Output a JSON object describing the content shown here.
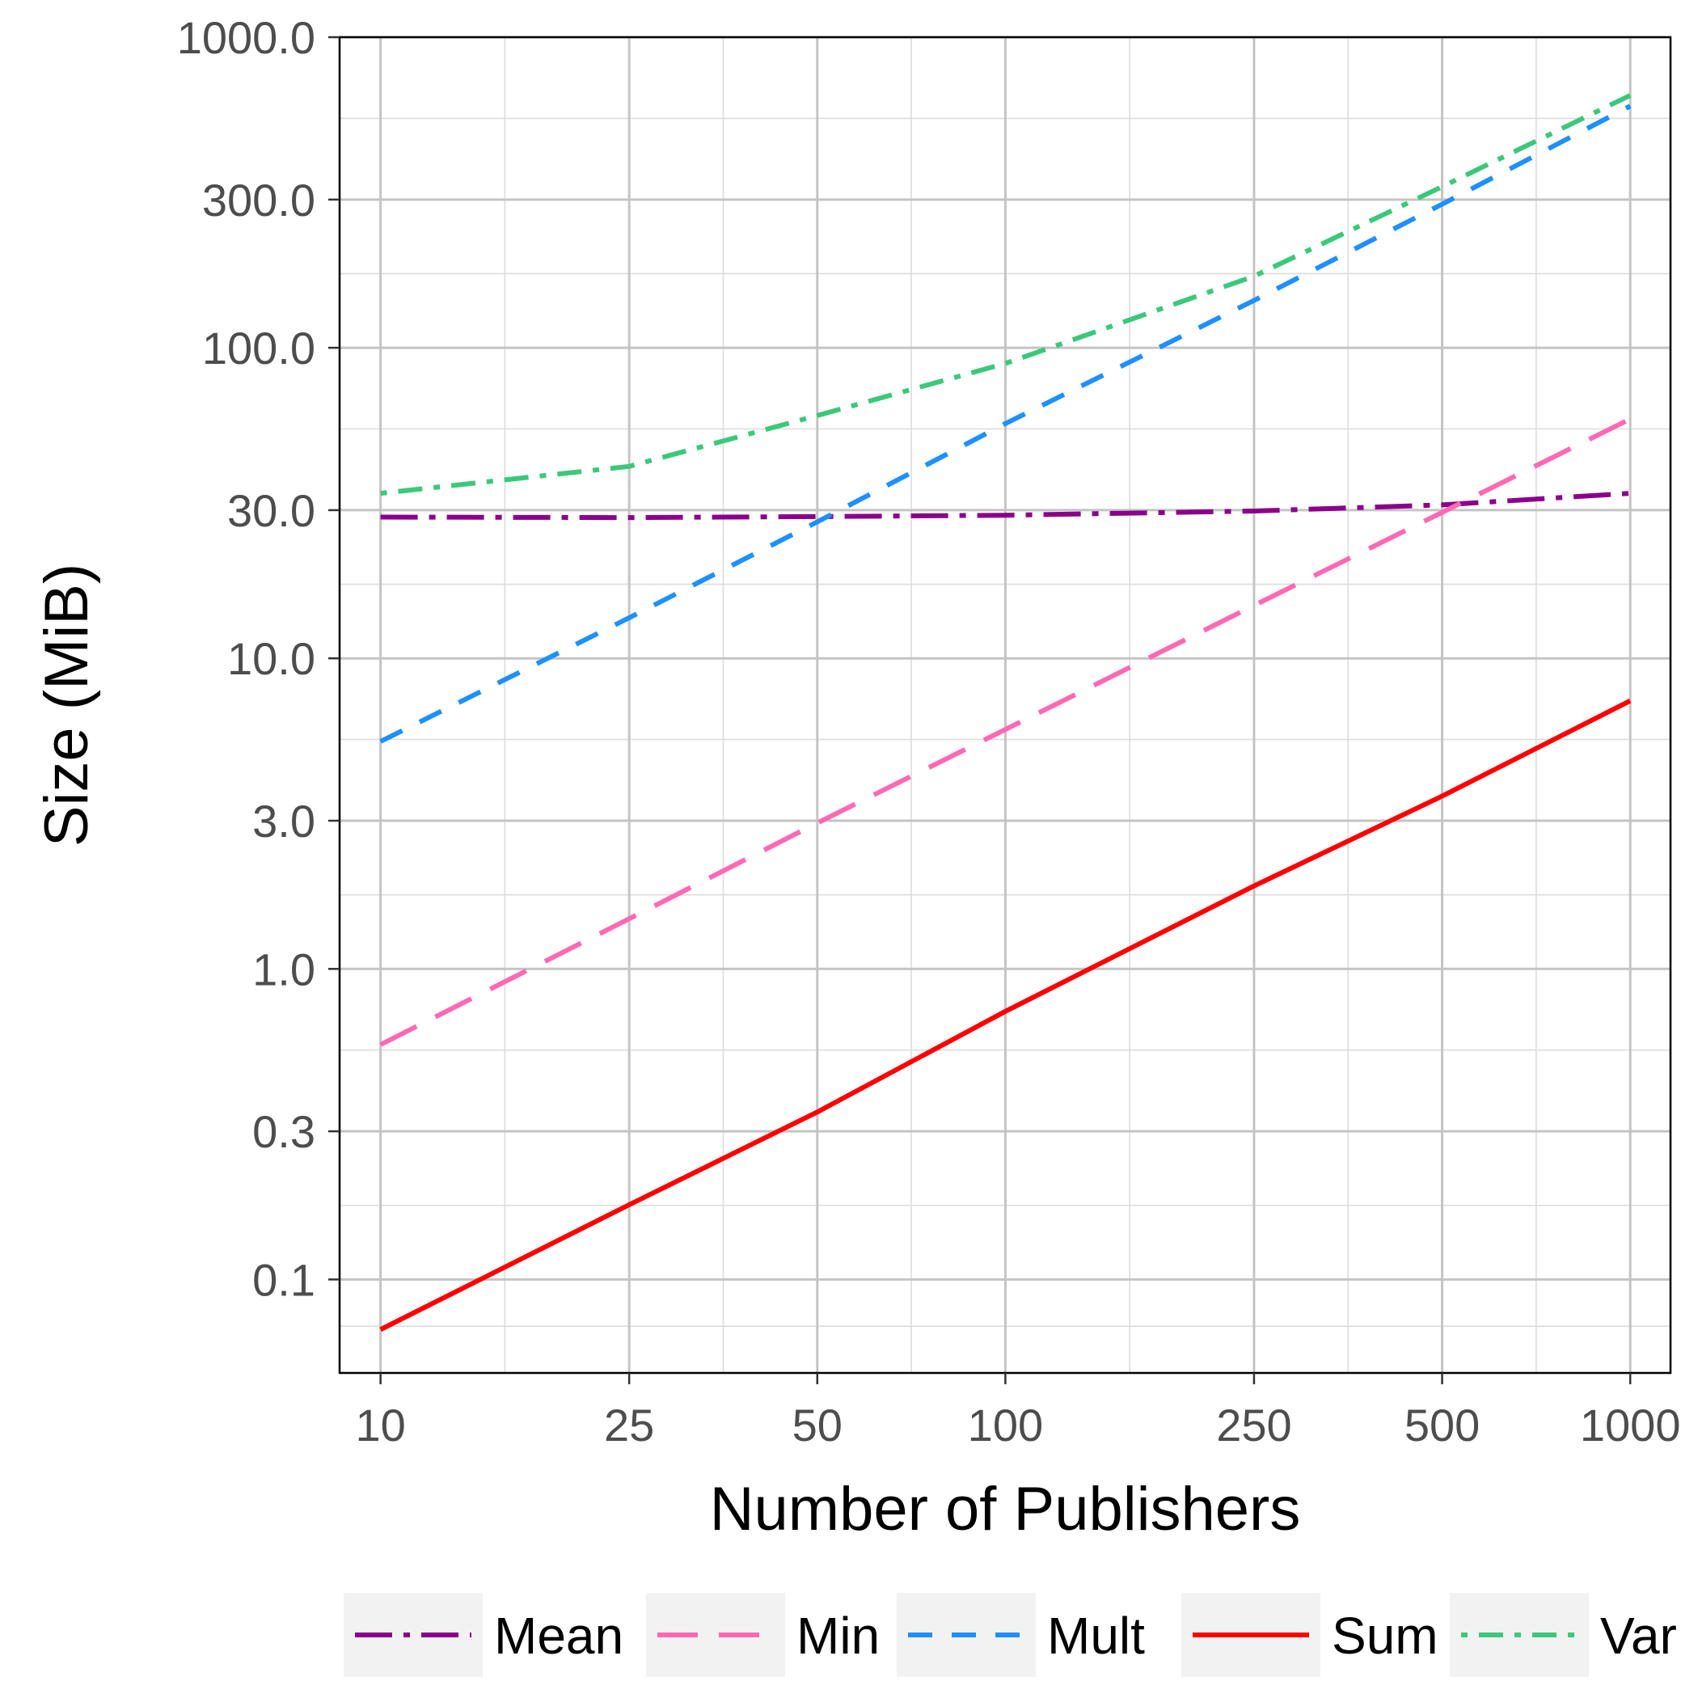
{
  "chart_data": {
    "type": "line",
    "xlabel": "Number of Publishers",
    "ylabel": "Size (MiB)",
    "x_scale": "log",
    "y_scale": "log",
    "xlim": [
      8.6,
      1160
    ],
    "ylim": [
      0.05,
      1000
    ],
    "x_ticks": [
      10,
      25,
      50,
      100,
      250,
      500,
      1000
    ],
    "x_tick_labels": [
      "10",
      "25",
      "50",
      "100",
      "250",
      "500",
      "1000"
    ],
    "y_ticks": [
      0.1,
      0.3,
      1.0,
      3.0,
      10.0,
      30.0,
      100.0,
      300.0,
      1000.0
    ],
    "y_tick_labels": [
      "0.1",
      "0.3",
      "1.0",
      "3.0",
      "10.0",
      "30.0",
      "100.0",
      "300.0",
      "1000.0"
    ],
    "grid": true,
    "legend_position": "bottom",
    "x": [
      10,
      25,
      50,
      100,
      250,
      500,
      1000
    ],
    "series": [
      {
        "name": "Mean",
        "color": "#8B008B",
        "dash": "longdash-dot",
        "values": [
          28.5,
          28.4,
          28.6,
          28.9,
          29.8,
          31.2,
          34.0
        ]
      },
      {
        "name": "Min",
        "color": "#FF69B4",
        "dash": "longdash",
        "values": [
          0.57,
          1.45,
          2.95,
          5.9,
          14.8,
          29.5,
          59.0
        ]
      },
      {
        "name": "Mult",
        "color": "#1E90FF",
        "dash": "dash",
        "values": [
          5.4,
          13.5,
          27.5,
          57.0,
          142.0,
          290.0,
          600.0
        ]
      },
      {
        "name": "Sum",
        "color": "#FF0000",
        "dash": "solid",
        "values": [
          0.069,
          0.174,
          0.346,
          0.73,
          1.85,
          3.6,
          7.3
        ]
      },
      {
        "name": "Var",
        "color": "#3CC87A",
        "dash": "dot-dash",
        "values": [
          34.0,
          41.5,
          60.5,
          89.0,
          170.0,
          330.0,
          650.0
        ]
      }
    ]
  }
}
